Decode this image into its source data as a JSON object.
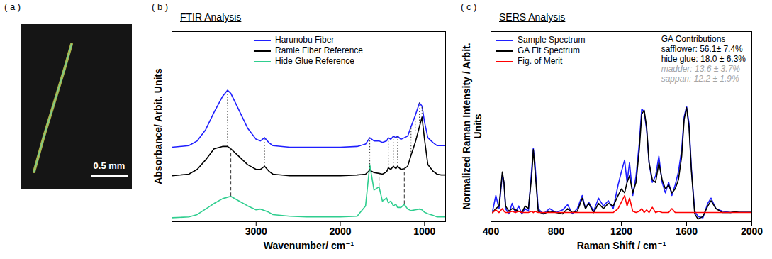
{
  "chart_data": [
    {
      "type": "image",
      "panel_label": "( a )",
      "annotations": [
        {
          "text": "0.5 mm"
        }
      ]
    },
    {
      "type": "line",
      "panel_label": "( b )",
      "title": "FTIR Analysis",
      "x_label": "Wavenumber/ cm⁻¹",
      "y_label": "Absorbance/ Arbit. Units",
      "x": [
        4000,
        3800,
        3700,
        3600,
        3500,
        3400,
        3340,
        3300,
        3200,
        3100,
        3000,
        2950,
        2900,
        2850,
        2800,
        2600,
        2400,
        2200,
        2000,
        1800,
        1700,
        1650,
        1600,
        1540,
        1500,
        1450,
        1430,
        1400,
        1370,
        1340,
        1320,
        1280,
        1240,
        1200,
        1160,
        1110,
        1060,
        1030,
        1000,
        960,
        900,
        850,
        800,
        750
      ],
      "series": [
        {
          "name": "Harunobu Fiber",
          "color": "#1f1fff",
          "values": [
            4.7,
            4.8,
            5.1,
            5.8,
            6.9,
            7.9,
            8.3,
            8.1,
            7,
            5.9,
            5.2,
            5.1,
            5.3,
            5,
            4.8,
            4.7,
            4.7,
            4.7,
            4.7,
            4.75,
            4.9,
            5.3,
            5.1,
            5.1,
            5,
            5.1,
            5.3,
            5.2,
            5.4,
            5.3,
            5.4,
            5.2,
            5.3,
            5.4,
            6,
            6.7,
            7.5,
            7.3,
            6.3,
            5.3,
            5,
            4.8,
            4.8,
            4.8
          ]
        },
        {
          "name": "Ramie Fiber Reference",
          "color": "#000000",
          "values": [
            2.9,
            3,
            3.3,
            3.9,
            4.6,
            4.75,
            4.75,
            4.6,
            4.1,
            3.6,
            3.3,
            3.3,
            3.5,
            3.2,
            3,
            2.9,
            2.9,
            2.9,
            2.9,
            2.95,
            3,
            3.25,
            3.1,
            3.05,
            3,
            3.15,
            3.4,
            3.3,
            3.5,
            3.35,
            3.5,
            3.3,
            3.35,
            3.5,
            4.2,
            5,
            6,
            6.6,
            5.2,
            3.6,
            3.2,
            3,
            2.95,
            2.95
          ]
        },
        {
          "name": "Hide Glue Reference",
          "color": "#2fce8f",
          "values": [
            0.25,
            0.3,
            0.45,
            0.8,
            1.15,
            1.45,
            1.55,
            1.6,
            1.3,
            1,
            0.75,
            0.8,
            0.7,
            0.6,
            0.45,
            0.35,
            0.3,
            0.3,
            0.3,
            0.35,
            1,
            3.6,
            2,
            2.2,
            1.3,
            1.5,
            1.2,
            1.3,
            1,
            1.1,
            0.9,
            0.9,
            1.1,
            0.8,
            0.7,
            0.75,
            0.8,
            0.75,
            0.6,
            0.5,
            0.4,
            0.3,
            0.3,
            0.3
          ]
        }
      ],
      "peak_lines": [
        {
          "line_style": "dotted",
          "from": "Ramie Fiber Reference",
          "to": "Harunobu Fiber",
          "x": [
            3340,
            2900,
            1650,
            1430,
            1370,
            1320,
            1160,
            1110,
            1060,
            1030
          ]
        },
        {
          "line_style": "dashed",
          "from": "Hide Glue Reference",
          "to": "Ramie Fiber Reference",
          "x": [
            3300,
            1540,
            1240
          ]
        }
      ],
      "xlim": [
        4000,
        750
      ],
      "xticks": [
        3000,
        2000,
        1000
      ],
      "ylim": [
        0,
        12
      ],
      "yticks": [],
      "tick_labels": "x",
      "legend": "top"
    },
    {
      "type": "line",
      "panel_label": "( c )",
      "title": "SERS Analysis",
      "x_label": "Raman Shift / cm⁻¹",
      "y_label": "Normalized Raman Intensity / Arbit. Units",
      "x": [
        410,
        430,
        450,
        470,
        480,
        490,
        510,
        530,
        550,
        570,
        590,
        610,
        630,
        650,
        660,
        670,
        690,
        720,
        760,
        800,
        840,
        870,
        900,
        930,
        960,
        980,
        1000,
        1030,
        1060,
        1090,
        1120,
        1150,
        1180,
        1200,
        1220,
        1235,
        1250,
        1270,
        1290,
        1310,
        1325,
        1340,
        1355,
        1370,
        1390,
        1410,
        1430,
        1450,
        1470,
        1490,
        1510,
        1530,
        1550,
        1570,
        1585,
        1600,
        1615,
        1630,
        1650,
        1670,
        1700,
        1730,
        1750,
        1780,
        1820,
        1870,
        1920,
        1970,
        2000
      ],
      "series": [
        {
          "name": "Sample Spectrum",
          "color": "#1f1fff",
          "values": [
            0.08,
            0.2,
            0.1,
            0.36,
            0.3,
            0.1,
            0.06,
            0.14,
            0.07,
            0.12,
            0.06,
            0.1,
            0.08,
            0.4,
            0.56,
            0.45,
            0.1,
            0.06,
            0.1,
            0.07,
            0.09,
            0.13,
            0.06,
            0.1,
            0.2,
            0.1,
            0.15,
            0.08,
            0.18,
            0.12,
            0.16,
            0.1,
            0.28,
            0.38,
            0.47,
            0.3,
            0.45,
            0.2,
            0.35,
            0.6,
            0.86,
            0.84,
            0.7,
            0.45,
            0.3,
            0.35,
            0.5,
            0.3,
            0.22,
            0.3,
            0.2,
            0.28,
            0.38,
            0.55,
            0.8,
            0.88,
            0.75,
            0.4,
            0.08,
            0.04,
            0.03,
            0.14,
            0.18,
            0.1,
            0.08,
            0.07,
            0.08,
            0.08,
            0.08
          ]
        },
        {
          "name": "GA Fit Spectrum",
          "color": "#000000",
          "values": [
            0.07,
            0.1,
            0.12,
            0.38,
            0.3,
            0.12,
            0.08,
            0.1,
            0.09,
            0.08,
            0.07,
            0.12,
            0.1,
            0.35,
            0.55,
            0.4,
            0.08,
            0.06,
            0.08,
            0.07,
            0.06,
            0.1,
            0.07,
            0.08,
            0.18,
            0.1,
            0.14,
            0.07,
            0.14,
            0.1,
            0.14,
            0.12,
            0.2,
            0.25,
            0.22,
            0.3,
            0.35,
            0.22,
            0.3,
            0.55,
            0.82,
            0.85,
            0.72,
            0.45,
            0.32,
            0.3,
            0.45,
            0.32,
            0.25,
            0.28,
            0.22,
            0.25,
            0.32,
            0.5,
            0.78,
            0.87,
            0.72,
            0.38,
            0.06,
            0.02,
            0.04,
            0.12,
            0.16,
            0.1,
            0.07,
            0.07,
            0.08,
            0.08,
            0.08
          ]
        },
        {
          "name": "Fig. of Merit",
          "color": "#ff0000",
          "values": [
            0.07,
            0.09,
            0.07,
            0.1,
            0.08,
            0.07,
            0.07,
            0.08,
            0.07,
            0.08,
            0.07,
            0.07,
            0.07,
            0.08,
            0.07,
            0.08,
            0.07,
            0.07,
            0.07,
            0.07,
            0.07,
            0.07,
            0.07,
            0.07,
            0.07,
            0.07,
            0.07,
            0.07,
            0.07,
            0.07,
            0.07,
            0.07,
            0.1,
            0.15,
            0.2,
            0.12,
            0.18,
            0.08,
            0.07,
            0.08,
            0.1,
            0.07,
            0.09,
            0.07,
            0.11,
            0.07,
            0.08,
            0.07,
            0.07,
            0.07,
            0.1,
            0.07,
            0.07,
            0.07,
            0.07,
            0.07,
            0.07,
            0.07,
            0.07,
            0.07,
            0.07,
            0.07,
            0.07,
            0.07,
            0.07,
            0.07,
            0.07,
            0.07,
            0.07
          ]
        }
      ],
      "xlim": [
        400,
        2000
      ],
      "xticks": [
        400,
        800,
        1200,
        1600,
        2000
      ],
      "ylim": [
        0,
        1.45
      ],
      "yticks": [],
      "tick_labels": "x",
      "legend": "top-left",
      "annotations": [
        {
          "text": "GA Contributions"
        },
        {
          "text": "safflower: 56.1± 7.4%",
          "color": "#000000"
        },
        {
          "text": "hide glue: 18.0 ± 6.3%",
          "color": "#000000"
        },
        {
          "text": "madder: 13.6 ± 3.7%",
          "color": "#a6a6a6"
        },
        {
          "text": "sappan: 12.2 ± 1.9%",
          "color": "#a6a6a6"
        }
      ]
    }
  ]
}
